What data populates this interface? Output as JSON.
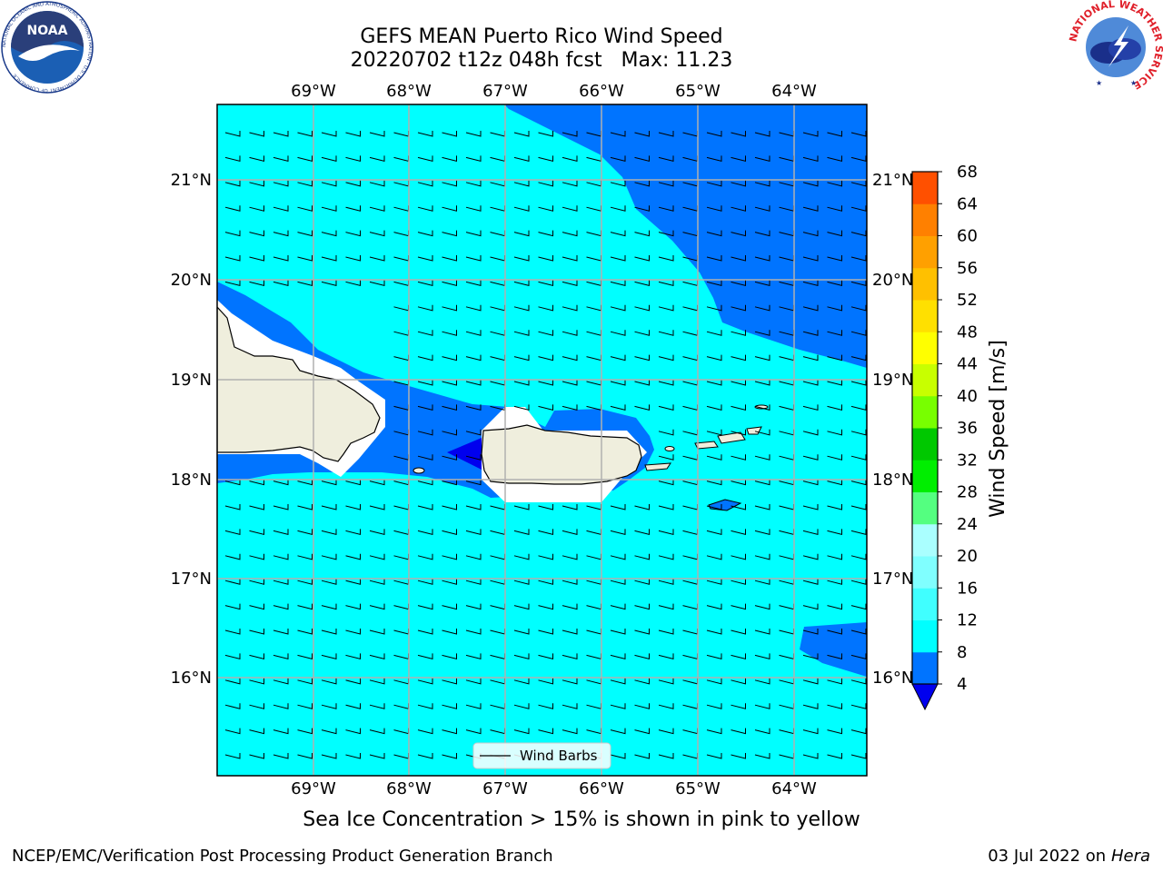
{
  "title": "GEFS MEAN Puerto Rico Wind Speed",
  "subtitle": "20220702 t12z 048h fcst   Max: 11.23",
  "map": {
    "lon_labels": [
      "69°W",
      "68°W",
      "67°W",
      "66°W",
      "65°W",
      "64°W"
    ],
    "lat_labels": [
      "21°N",
      "20°N",
      "19°N",
      "18°N",
      "17°N",
      "16°N"
    ],
    "legend_label": "Wind Barbs"
  },
  "colorbar": {
    "label": "Wind Speed [m/s]",
    "ticks": [
      4,
      8,
      12,
      16,
      20,
      24,
      28,
      32,
      36,
      40,
      44,
      48,
      52,
      56,
      60,
      64,
      68
    ],
    "colors": [
      "#0074ff",
      "#00ffff",
      "#40ffff",
      "#80ffff",
      "#aaffff",
      "#54ff80",
      "#00ee00",
      "#00c800",
      "#78ff00",
      "#c8ff00",
      "#ffff00",
      "#ffe000",
      "#ffc000",
      "#ffa000",
      "#ff8000",
      "#ff5000",
      "#ff2000",
      "#ff0000"
    ],
    "under_color": "#0000ee"
  },
  "caption": "Sea Ice Concentration > 15% is shown in pink to yellow",
  "footer": {
    "left": "NCEP/EMC/Verification Post Processing Product Generation Branch",
    "right_date": "03 Jul 2022 on ",
    "right_host": "Hera"
  },
  "logos": {
    "noaa_text": "NOAA",
    "noaa_ring": "NATIONAL OCEANIC AND ATMOSPHERIC ADMINISTRATION · U.S. DEPARTMENT OF COMMERCE",
    "nws_ring": "NATIONAL WEATHER SERVICE"
  }
}
